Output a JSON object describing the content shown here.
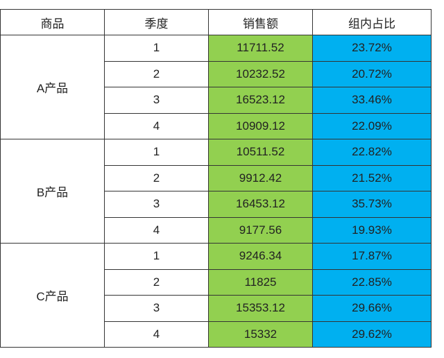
{
  "table": {
    "header": [
      "商品",
      "季度",
      "销售额",
      "组内占比"
    ],
    "groups": [
      {
        "name": "A产品",
        "rows": [
          [
            "1",
            "11711.52",
            "23.72%"
          ],
          [
            "2",
            "10232.52",
            "20.72%"
          ],
          [
            "3",
            "16523.12",
            "33.46%"
          ],
          [
            "4",
            "10909.12",
            "22.09%"
          ]
        ]
      },
      {
        "name": "B产品",
        "rows": [
          [
            "1",
            "10511.52",
            "22.82%"
          ],
          [
            "2",
            "9912.42",
            "21.52%"
          ],
          [
            "3",
            "16453.12",
            "35.73%"
          ],
          [
            "4",
            "9177.56",
            "19.93%"
          ]
        ]
      },
      {
        "name": "C产品",
        "rows": [
          [
            "1",
            "9246.34",
            "17.87%"
          ],
          [
            "2",
            "11825",
            "22.85%"
          ],
          [
            "3",
            "15353.12",
            "29.66%"
          ],
          [
            "4",
            "15332",
            "29.62%"
          ]
        ]
      }
    ]
  }
}
